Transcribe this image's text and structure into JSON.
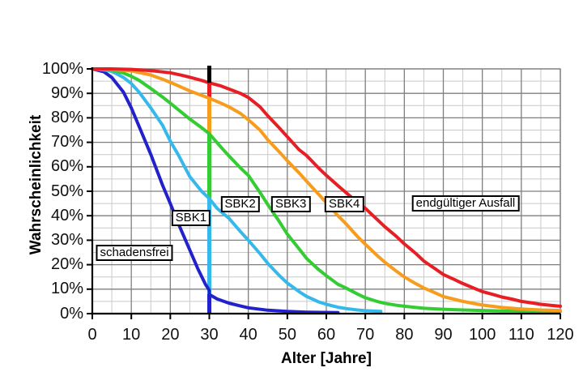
{
  "chart_data": {
    "type": "line",
    "title": "",
    "xlabel": "Alter [Jahre]",
    "ylabel": "Wahrscheinlichkeit",
    "xlim": [
      0,
      120
    ],
    "ylim": [
      0,
      100
    ],
    "x_ticks": [
      0,
      10,
      20,
      30,
      40,
      50,
      60,
      70,
      80,
      90,
      100,
      110,
      120
    ],
    "y_ticks": [
      0,
      10,
      20,
      30,
      40,
      50,
      60,
      70,
      80,
      90,
      100
    ],
    "y_tick_suffix": "%",
    "grid": {
      "minor_step": 5,
      "major_step": 10,
      "minor_color": "#c9c9c9",
      "major_color": "#7f7f7f",
      "axis_color": "#000000"
    },
    "legend_position": "none",
    "series": [
      {
        "name": "schadensfrei",
        "slug": "schadensfrei",
        "color": "#2222cc",
        "points": [
          [
            0,
            100
          ],
          [
            3,
            98.8
          ],
          [
            5,
            96.5
          ],
          [
            8,
            90.5
          ],
          [
            10,
            84
          ],
          [
            12,
            76.5
          ],
          [
            15,
            65
          ],
          [
            18,
            52.5
          ],
          [
            20,
            45
          ],
          [
            22,
            37
          ],
          [
            25,
            26
          ],
          [
            27,
            18.5
          ],
          [
            29,
            12
          ],
          [
            30,
            9.5
          ],
          [
            30,
            7.8
          ],
          [
            32,
            6
          ],
          [
            35,
            4.3
          ],
          [
            38,
            3.1
          ],
          [
            40,
            2.4
          ],
          [
            45,
            1.4
          ],
          [
            50,
            0.9
          ],
          [
            55,
            0.6
          ],
          [
            59,
            0.5
          ],
          [
            63,
            0.4
          ]
        ]
      },
      {
        "name": "SBK1",
        "slug": "sbk1",
        "color": "#35b9ec",
        "points": [
          [
            0,
            100
          ],
          [
            3,
            99.6
          ],
          [
            5,
            99
          ],
          [
            8,
            96.5
          ],
          [
            10,
            94
          ],
          [
            12,
            90.5
          ],
          [
            15,
            84
          ],
          [
            18,
            77
          ],
          [
            20,
            70.5
          ],
          [
            22,
            65
          ],
          [
            25,
            56
          ],
          [
            28,
            50
          ],
          [
            30,
            47
          ],
          [
            32,
            43
          ],
          [
            35,
            39
          ],
          [
            38,
            33.5
          ],
          [
            40,
            30
          ],
          [
            43,
            24.5
          ],
          [
            45,
            20.5
          ],
          [
            48,
            15.5
          ],
          [
            50,
            12.5
          ],
          [
            53,
            9
          ],
          [
            55,
            7
          ],
          [
            58,
            4.8
          ],
          [
            60,
            3.8
          ],
          [
            63,
            2.6
          ],
          [
            65,
            2.1
          ],
          [
            68,
            1.5
          ],
          [
            70,
            1.2
          ],
          [
            74,
            0.9
          ]
        ]
      },
      {
        "name": "SBK2",
        "slug": "sbk2",
        "color": "#33cc33",
        "points": [
          [
            0,
            100
          ],
          [
            5,
            99.5
          ],
          [
            8,
            98.3
          ],
          [
            10,
            97
          ],
          [
            12,
            95.3
          ],
          [
            15,
            92
          ],
          [
            18,
            88.5
          ],
          [
            20,
            86
          ],
          [
            25,
            79.5
          ],
          [
            28,
            76
          ],
          [
            30,
            73.5
          ],
          [
            33,
            68
          ],
          [
            35,
            64.5
          ],
          [
            38,
            59.5
          ],
          [
            40,
            56.5
          ],
          [
            43,
            49.5
          ],
          [
            45,
            44.5
          ],
          [
            48,
            37.5
          ],
          [
            50,
            32.5
          ],
          [
            53,
            26.5
          ],
          [
            55,
            22.5
          ],
          [
            58,
            18
          ],
          [
            60,
            15.5
          ],
          [
            63,
            12
          ],
          [
            65,
            10.5
          ],
          [
            68,
            8
          ],
          [
            70,
            6.5
          ],
          [
            73,
            5
          ],
          [
            75,
            4.2
          ],
          [
            78,
            3.4
          ],
          [
            80,
            3
          ],
          [
            85,
            2.2
          ],
          [
            90,
            1.8
          ],
          [
            95,
            1.5
          ],
          [
            100,
            1.3
          ],
          [
            105,
            1.1
          ],
          [
            110,
            1
          ],
          [
            120,
            0.9
          ]
        ]
      },
      {
        "name": "SBK3",
        "slug": "sbk3",
        "color": "#f79c1c",
        "points": [
          [
            0,
            100
          ],
          [
            5,
            99.8
          ],
          [
            10,
            99.2
          ],
          [
            15,
            97.5
          ],
          [
            18,
            95.8
          ],
          [
            20,
            94.5
          ],
          [
            25,
            91
          ],
          [
            30,
            88
          ],
          [
            33,
            86
          ],
          [
            35,
            84.5
          ],
          [
            38,
            81.8
          ],
          [
            40,
            79.2
          ],
          [
            43,
            75
          ],
          [
            45,
            71
          ],
          [
            48,
            66
          ],
          [
            50,
            62.5
          ],
          [
            53,
            57.5
          ],
          [
            55,
            54
          ],
          [
            58,
            48.8
          ],
          [
            60,
            45.3
          ],
          [
            63,
            40
          ],
          [
            65,
            36.8
          ],
          [
            68,
            31.5
          ],
          [
            70,
            28.3
          ],
          [
            73,
            23.8
          ],
          [
            75,
            21
          ],
          [
            78,
            17.3
          ],
          [
            80,
            15
          ],
          [
            83,
            12.2
          ],
          [
            85,
            10.5
          ],
          [
            88,
            8.4
          ],
          [
            90,
            7
          ],
          [
            93,
            5.8
          ],
          [
            95,
            5
          ],
          [
            98,
            4.1
          ],
          [
            100,
            3.5
          ],
          [
            105,
            2.5
          ],
          [
            110,
            1.9
          ],
          [
            115,
            1.5
          ],
          [
            120,
            1.3
          ]
        ]
      },
      {
        "name": "SBK4",
        "slug": "sbk4",
        "color": "#e81e25",
        "points": [
          [
            0,
            100
          ],
          [
            5,
            100
          ],
          [
            10,
            99.8
          ],
          [
            15,
            99.3
          ],
          [
            20,
            98.4
          ],
          [
            23,
            97.4
          ],
          [
            25,
            96.6
          ],
          [
            28,
            95.3
          ],
          [
            30,
            94.3
          ],
          [
            33,
            93
          ],
          [
            35,
            91.8
          ],
          [
            38,
            90
          ],
          [
            40,
            88.3
          ],
          [
            43,
            84.5
          ],
          [
            45,
            80.8
          ],
          [
            48,
            75.8
          ],
          [
            50,
            72.3
          ],
          [
            53,
            67
          ],
          [
            55,
            64.5
          ],
          [
            58,
            59.5
          ],
          [
            60,
            56.5
          ],
          [
            63,
            52.3
          ],
          [
            65,
            49.5
          ],
          [
            68,
            45.5
          ],
          [
            70,
            43
          ],
          [
            73,
            38.5
          ],
          [
            75,
            35.5
          ],
          [
            78,
            31.5
          ],
          [
            80,
            28.5
          ],
          [
            83,
            24.5
          ],
          [
            85,
            21.5
          ],
          [
            88,
            18.2
          ],
          [
            90,
            16
          ],
          [
            93,
            13.8
          ],
          [
            95,
            12.3
          ],
          [
            98,
            10.3
          ],
          [
            100,
            9
          ],
          [
            103,
            7.7
          ],
          [
            105,
            6.8
          ],
          [
            108,
            5.8
          ],
          [
            110,
            5
          ],
          [
            113,
            4.3
          ],
          [
            115,
            3.8
          ],
          [
            118,
            3.3
          ],
          [
            120,
            3
          ]
        ]
      }
    ],
    "age30_distribution": {
      "x": 30,
      "segments": [
        {
          "state": "schadensfrei",
          "color": "#2222cc",
          "from": 0,
          "to": 8
        },
        {
          "state": "SBK1",
          "color": "#35b9ec",
          "from": 8,
          "to": 47
        },
        {
          "state": "SBK2",
          "color": "#33cc33",
          "from": 47,
          "to": 73.5
        },
        {
          "state": "SBK3",
          "color": "#f79c1c",
          "from": 73.5,
          "to": 88
        },
        {
          "state": "SBK4",
          "color": "#e81e25",
          "from": 88,
          "to": 94.3
        },
        {
          "state": "endgültiger Ausfall",
          "color": "#000000",
          "from": 94.3,
          "to": 101.3,
          "final": true
        }
      ]
    },
    "annotations": [
      {
        "text": "schadensfrei",
        "x": 10.8,
        "y": 24.8
      },
      {
        "text": "SBK1",
        "x": 25.3,
        "y": 39.0
      },
      {
        "text": "SBK2",
        "x": 37.9,
        "y": 44.7
      },
      {
        "text": "SBK3",
        "x": 50.9,
        "y": 44.7
      },
      {
        "text": "SBK4",
        "x": 64.6,
        "y": 44.7
      },
      {
        "text": "endgültiger Ausfall",
        "x": 95.7,
        "y": 45.0
      }
    ]
  }
}
